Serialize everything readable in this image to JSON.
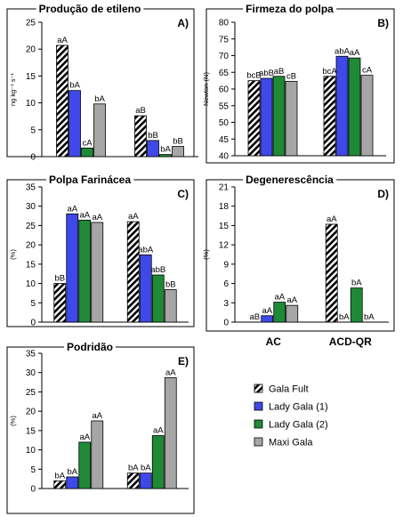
{
  "series": [
    {
      "name": "Gala Fult",
      "color": "#ffffff",
      "pattern": "diag-stripes"
    },
    {
      "name": "Lady Gala (1)",
      "color": "#3f48e8"
    },
    {
      "name": "Lady Gala (2)",
      "color": "#1f8a36"
    },
    {
      "name": "Maxi Gala",
      "color": "#a6a6a6"
    }
  ],
  "chart_data": [
    {
      "type": "bar",
      "title": "Produção de etileno",
      "panel_label": "A)",
      "ylabel": "ng kg⁻¹ s⁻¹",
      "ylim": [
        0,
        25
      ],
      "yticks": [
        0,
        5,
        10,
        15,
        20,
        25
      ],
      "categories": [
        "AC",
        "ACD-QR"
      ],
      "show_category_labels": false,
      "series": [
        {
          "name": "Gala Fult",
          "values": [
            20.7,
            7.6
          ],
          "labels": [
            "aA",
            "aB"
          ]
        },
        {
          "name": "Lady Gala (1)",
          "values": [
            12.3,
            3.0
          ],
          "labels": [
            "bA",
            "bB"
          ]
        },
        {
          "name": "Lady Gala (2)",
          "values": [
            1.6,
            0.4
          ],
          "labels": [
            "cA",
            "bA"
          ]
        },
        {
          "name": "Maxi Gala",
          "values": [
            9.8,
            1.9
          ],
          "labels": [
            "bA",
            "bB"
          ]
        }
      ]
    },
    {
      "type": "bar",
      "title": "Firmeza do polpa",
      "panel_label": "B)",
      "ylabel": "Newton (N)",
      "ylim": [
        40,
        80
      ],
      "yticks": [
        40,
        45,
        50,
        55,
        60,
        65,
        70,
        75,
        80
      ],
      "categories": [
        "AC",
        "ACD-QR"
      ],
      "show_category_labels": false,
      "series": [
        {
          "name": "Gala Fult",
          "values": [
            62.5,
            63.8
          ],
          "labels": [
            "bcB",
            "bcA"
          ]
        },
        {
          "name": "Lady Gala (1)",
          "values": [
            63.2,
            69.8
          ],
          "labels": [
            "abB",
            "abA"
          ]
        },
        {
          "name": "Lady Gala (2)",
          "values": [
            63.8,
            69.3
          ],
          "labels": [
            "aB",
            "aA"
          ]
        },
        {
          "name": "Maxi Gala",
          "values": [
            62.3,
            64.1
          ],
          "labels": [
            "cB",
            "cA"
          ]
        }
      ]
    },
    {
      "type": "bar",
      "title": "Polpa Farinácea",
      "panel_label": "C)",
      "ylabel": "(%)",
      "ylim": [
        0,
        35
      ],
      "yticks": [
        0,
        5,
        10,
        15,
        20,
        25,
        30,
        35
      ],
      "categories": [
        "AC",
        "ACD-QR"
      ],
      "show_category_labels": false,
      "series": [
        {
          "name": "Gala Fult",
          "values": [
            10.0,
            26.0
          ],
          "labels": [
            "bB",
            "aA"
          ]
        },
        {
          "name": "Lady Gala (1)",
          "values": [
            28.0,
            17.4
          ],
          "labels": [
            "aA",
            "abA"
          ]
        },
        {
          "name": "Lady Gala (2)",
          "values": [
            26.4,
            12.2
          ],
          "labels": [
            "aA",
            "abB"
          ]
        },
        {
          "name": "Maxi Gala",
          "values": [
            25.8,
            8.4
          ],
          "labels": [
            "aA",
            "bB"
          ]
        }
      ]
    },
    {
      "type": "bar",
      "title": "Degenerescência",
      "panel_label": "D)",
      "ylabel": "(%)",
      "ylim": [
        0,
        21
      ],
      "yticks": [
        0,
        3,
        6,
        9,
        12,
        15,
        18,
        21
      ],
      "categories": [
        "AC",
        "ACD-QR"
      ],
      "show_category_labels": true,
      "series": [
        {
          "name": "Gala Fult",
          "values": [
            0,
            15.2
          ],
          "labels": [
            "aB",
            "aA"
          ]
        },
        {
          "name": "Lady Gala (1)",
          "values": [
            1.0,
            0
          ],
          "labels": [
            "aA",
            "bA"
          ]
        },
        {
          "name": "Lady Gala (2)",
          "values": [
            3.1,
            5.3
          ],
          "labels": [
            "aA",
            "bA"
          ]
        },
        {
          "name": "Maxi Gala",
          "values": [
            2.6,
            0
          ],
          "labels": [
            "aA",
            "bA"
          ]
        }
      ]
    },
    {
      "type": "bar",
      "title": "Podridão",
      "panel_label": "E)",
      "ylabel": "(%)",
      "ylim": [
        0,
        35
      ],
      "yticks": [
        0,
        5,
        10,
        15,
        20,
        25,
        30,
        35
      ],
      "categories": [
        "AC",
        "ACD-QR"
      ],
      "show_category_labels": true,
      "series": [
        {
          "name": "Gala Fult",
          "values": [
            2.0,
            4.0
          ],
          "labels": [
            "bA",
            "bA"
          ]
        },
        {
          "name": "Lady Gala (1)",
          "values": [
            3.0,
            4.0
          ],
          "labels": [
            "bA",
            "bA"
          ]
        },
        {
          "name": "Lady Gala (2)",
          "values": [
            12.0,
            13.7
          ],
          "labels": [
            "aA",
            "aA"
          ]
        },
        {
          "name": "Maxi Gala",
          "values": [
            17.5,
            28.7
          ],
          "labels": [
            "aA",
            "aA"
          ]
        }
      ]
    }
  ]
}
